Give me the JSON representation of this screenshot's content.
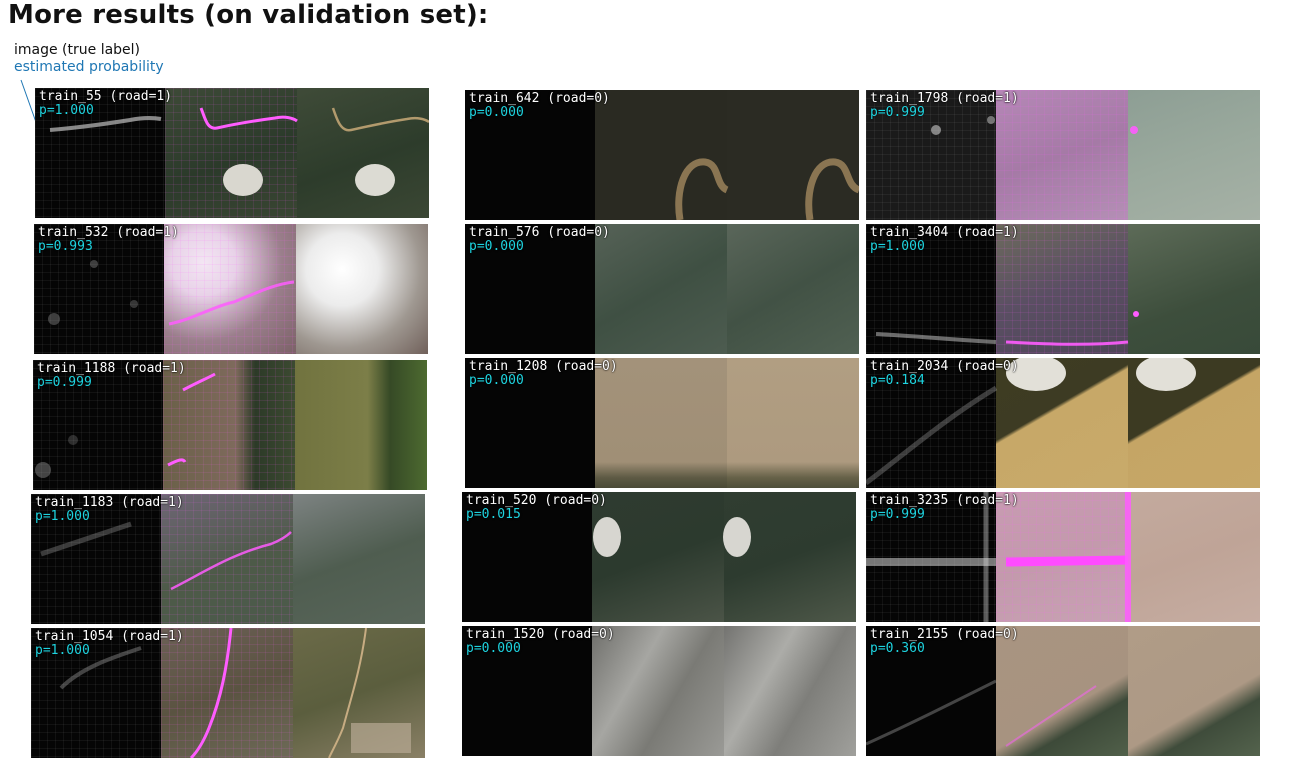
{
  "page": {
    "title": "More results (on validation set):"
  },
  "legend": {
    "line1": "image (true label)",
    "line2": "estimated probability",
    "line2_color": "#1f77b4"
  },
  "colors": {
    "probability_text": "#1ed3df",
    "overlay_magenta": "#ff55ff"
  },
  "tiles": [
    {
      "label": "train_55 (road=1)",
      "prob": "p=1.000",
      "scene": "forest-road"
    },
    {
      "label": "train_532 (road=1)",
      "prob": "p=0.993",
      "scene": "cloudy-forest"
    },
    {
      "label": "train_1188 (road=1)",
      "prob": "p=0.999",
      "scene": "pasture"
    },
    {
      "label": "train_1183 (road=1)",
      "prob": "p=1.000",
      "scene": "hazy-forest"
    },
    {
      "label": "train_1054 (road=1)",
      "prob": "p=1.000",
      "scene": "rural-road"
    },
    {
      "label": "train_642 (road=0)",
      "prob": "p=0.000",
      "scene": "dark-river"
    },
    {
      "label": "train_576 (road=0)",
      "prob": "p=0.000",
      "scene": "green-forest"
    },
    {
      "label": "train_1208 (road=0)",
      "prob": "p=0.000",
      "scene": "beige-haze"
    },
    {
      "label": "train_520 (road=0)",
      "prob": "p=0.015",
      "scene": "forest-cloud"
    },
    {
      "label": "train_1520 (road=0)",
      "prob": "p=0.000",
      "scene": "clouds"
    },
    {
      "label": "train_1798 (road=1)",
      "prob": "p=0.999",
      "scene": "pale-green"
    },
    {
      "label": "train_3404 (road=1)",
      "prob": "p=1.000",
      "scene": "forest-edge"
    },
    {
      "label": "train_2034 (road=0)",
      "prob": "p=0.184",
      "scene": "field-forest"
    },
    {
      "label": "train_3235 (road=1)",
      "prob": "p=0.999",
      "scene": "pink-field"
    },
    {
      "label": "train_2155 (road=0)",
      "prob": "p=0.360",
      "scene": "pivot-field"
    }
  ]
}
